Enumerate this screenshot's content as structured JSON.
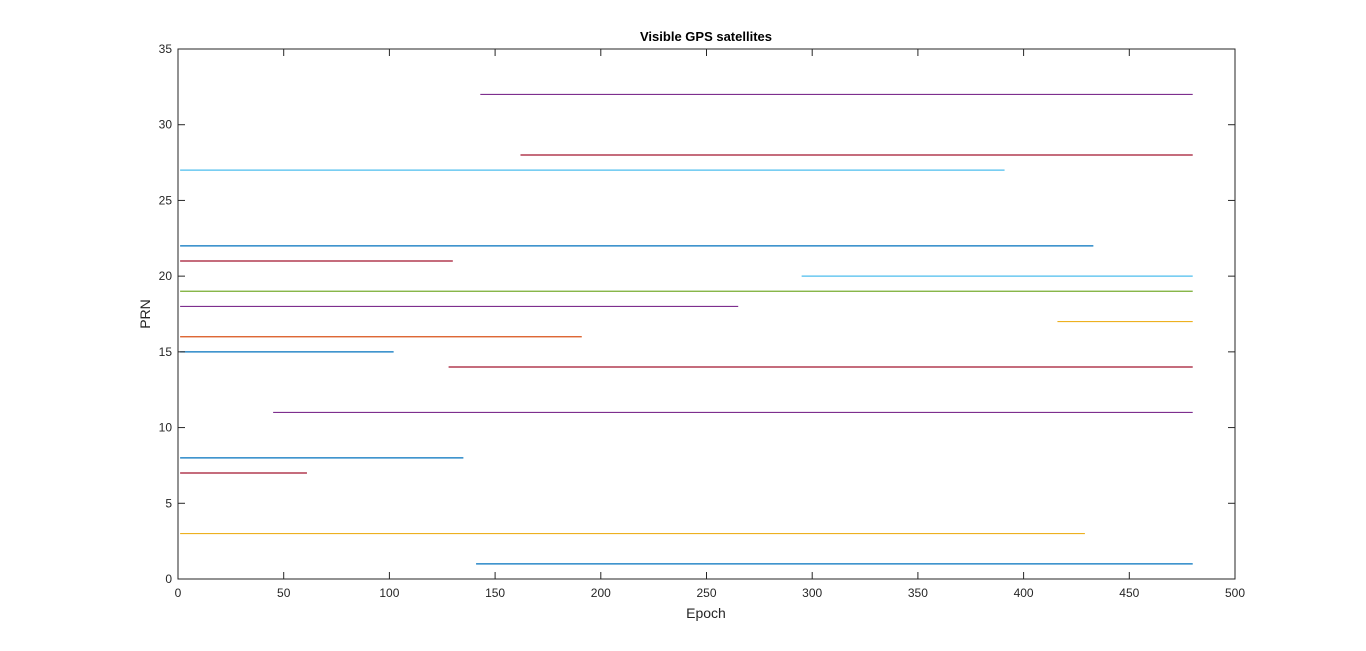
{
  "chart_data": {
    "type": "line",
    "title": "Visible GPS satellites",
    "xlabel": "Epoch",
    "ylabel": "PRN",
    "xlim": [
      0,
      500
    ],
    "ylim": [
      0,
      35
    ],
    "x_ticks": [
      0,
      50,
      100,
      150,
      200,
      250,
      300,
      350,
      400,
      450,
      500
    ],
    "y_ticks": [
      0,
      5,
      10,
      15,
      20,
      25,
      30,
      35
    ],
    "grid": false,
    "series": [
      {
        "prn": 1,
        "x_start": 141,
        "x_end": 480,
        "color": "#0072BD"
      },
      {
        "prn": 3,
        "x_start": 1,
        "x_end": 429,
        "color": "#EDB120"
      },
      {
        "prn": 7,
        "x_start": 1,
        "x_end": 61,
        "color": "#A2142F"
      },
      {
        "prn": 8,
        "x_start": 1,
        "x_end": 135,
        "color": "#0072BD"
      },
      {
        "prn": 11,
        "x_start": 45,
        "x_end": 480,
        "color": "#7E2F8E"
      },
      {
        "prn": 14,
        "x_start": 128,
        "x_end": 480,
        "color": "#A2142F"
      },
      {
        "prn": 15,
        "x_start": 1,
        "x_end": 102,
        "color": "#0072BD"
      },
      {
        "prn": 16,
        "x_start": 1,
        "x_end": 191,
        "color": "#D95319"
      },
      {
        "prn": 17,
        "x_start": 416,
        "x_end": 480,
        "color": "#EDB120"
      },
      {
        "prn": 18,
        "x_start": 1,
        "x_end": 265,
        "color": "#7E2F8E"
      },
      {
        "prn": 19,
        "x_start": 1,
        "x_end": 480,
        "color": "#77AC30"
      },
      {
        "prn": 20,
        "x_start": 295,
        "x_end": 480,
        "color": "#4DBEEE"
      },
      {
        "prn": 21,
        "x_start": 1,
        "x_end": 130,
        "color": "#A2142F"
      },
      {
        "prn": 22,
        "x_start": 1,
        "x_end": 433,
        "color": "#0072BD"
      },
      {
        "prn": 27,
        "x_start": 1,
        "x_end": 391,
        "color": "#4DBEEE"
      },
      {
        "prn": 28,
        "x_start": 162,
        "x_end": 480,
        "color": "#A2142F"
      },
      {
        "prn": 32,
        "x_start": 143,
        "x_end": 480,
        "color": "#7E2F8E"
      }
    ]
  }
}
